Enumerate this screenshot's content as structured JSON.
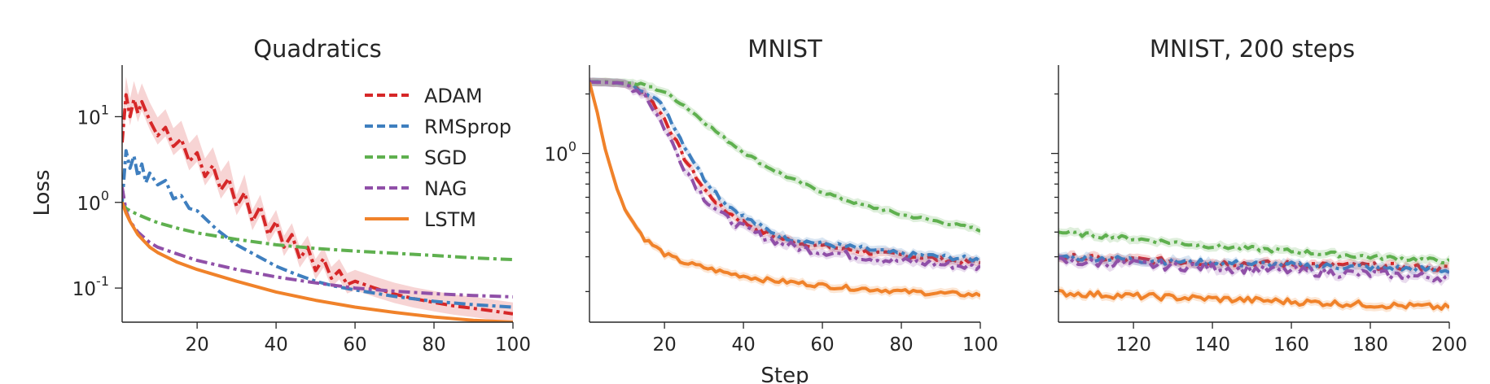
{
  "colors": {
    "ADAM": "#d62728",
    "RMSprop": "#3f7fbf",
    "SGD": "#5fb04f",
    "NAG": "#9050a8",
    "LSTM": "#f0822a"
  },
  "legend": {
    "placement": "top-right",
    "entries": [
      "ADAM",
      "RMSprop",
      "SGD",
      "NAG",
      "LSTM"
    ]
  },
  "shared_xlabel": "Step",
  "chart_data": [
    {
      "type": "line",
      "title": "Quadratics",
      "xlabel": "",
      "ylabel": "Loss",
      "yscale": "log",
      "xlim": [
        1,
        100
      ],
      "ylim": [
        0.04,
        40
      ],
      "xticks": [
        20,
        40,
        60,
        80,
        100
      ],
      "yticks": [
        0.1,
        1,
        10
      ],
      "ytick_labels": [
        [
          "10",
          "-1"
        ],
        [
          "10",
          "0"
        ],
        [
          "10",
          "1"
        ]
      ],
      "grid": false,
      "series": [
        {
          "name": "ADAM",
          "style": "dashdot",
          "band": true,
          "x": [
            1,
            2,
            3,
            4,
            5,
            6,
            8,
            10,
            12,
            14,
            16,
            18,
            20,
            22,
            24,
            26,
            28,
            30,
            32,
            34,
            36,
            38,
            40,
            42,
            44,
            46,
            48,
            50,
            52,
            54,
            56,
            58,
            60,
            65,
            70,
            75,
            80,
            85,
            90,
            95,
            100
          ],
          "y": [
            5,
            18,
            10,
            16,
            11,
            15,
            9,
            6,
            7.5,
            4.5,
            5.5,
            3,
            3.8,
            2,
            2.7,
            1.4,
            1.9,
            0.9,
            1.3,
            0.6,
            0.9,
            0.42,
            0.6,
            0.3,
            0.42,
            0.22,
            0.3,
            0.16,
            0.22,
            0.13,
            0.16,
            0.11,
            0.12,
            0.1,
            0.085,
            0.075,
            0.068,
            0.062,
            0.058,
            0.054,
            0.05
          ]
        },
        {
          "name": "RMSprop",
          "style": "dashdot",
          "band": false,
          "x": [
            1,
            2,
            3,
            4,
            5,
            6,
            7,
            8,
            10,
            12,
            14,
            16,
            18,
            20,
            25,
            30,
            35,
            40,
            45,
            50,
            55,
            60,
            70,
            80,
            90,
            100
          ],
          "y": [
            1,
            4,
            2.5,
            3.5,
            2,
            2.8,
            1.7,
            2.2,
            1.6,
            1.8,
            1.1,
            1.2,
            0.85,
            0.8,
            0.48,
            0.32,
            0.24,
            0.18,
            0.145,
            0.12,
            0.105,
            0.095,
            0.08,
            0.07,
            0.064,
            0.06
          ]
        },
        {
          "name": "SGD",
          "style": "dashdot",
          "band": false,
          "x": [
            1,
            2,
            3,
            5,
            8,
            10,
            15,
            20,
            30,
            40,
            50,
            60,
            70,
            80,
            90,
            100
          ],
          "y": [
            1,
            0.85,
            0.8,
            0.72,
            0.63,
            0.58,
            0.5,
            0.44,
            0.37,
            0.32,
            0.29,
            0.27,
            0.255,
            0.24,
            0.225,
            0.215
          ]
        },
        {
          "name": "NAG",
          "style": "dashdot",
          "band": false,
          "x": [
            1,
            2,
            3,
            5,
            8,
            10,
            15,
            20,
            30,
            40,
            50,
            60,
            70,
            80,
            90,
            100
          ],
          "y": [
            1.5,
            0.8,
            0.6,
            0.45,
            0.34,
            0.3,
            0.25,
            0.21,
            0.165,
            0.135,
            0.115,
            0.1,
            0.092,
            0.086,
            0.082,
            0.079
          ]
        },
        {
          "name": "LSTM",
          "style": "solid",
          "band": false,
          "x": [
            1,
            2,
            3,
            5,
            8,
            10,
            15,
            20,
            30,
            40,
            50,
            60,
            70,
            80,
            90,
            100
          ],
          "y": [
            1,
            0.75,
            0.6,
            0.42,
            0.3,
            0.26,
            0.2,
            0.165,
            0.12,
            0.09,
            0.072,
            0.06,
            0.052,
            0.046,
            0.042,
            0.038
          ]
        }
      ]
    },
    {
      "type": "line",
      "title": "MNIST",
      "xlabel": "Step",
      "ylabel": "",
      "yscale": "log",
      "xlim": [
        1,
        100
      ],
      "ylim": [
        0.14,
        2.8
      ],
      "xticks": [
        20,
        40,
        60,
        80,
        100
      ],
      "yticks": [
        1
      ],
      "ytick_labels": [
        [
          "10",
          "0"
        ]
      ],
      "minor_yticks": [
        0.2,
        0.3,
        0.4,
        0.5,
        0.6,
        0.7,
        0.8,
        0.9,
        2
      ],
      "grid": false,
      "series": [
        {
          "name": "ADAM",
          "style": "dashdot",
          "band": true,
          "noise": 0.02,
          "x": [
            1,
            5,
            10,
            15,
            20,
            25,
            30,
            35,
            40,
            45,
            50,
            55,
            60,
            65,
            70,
            75,
            80,
            85,
            90,
            95,
            100
          ],
          "y": [
            2.3,
            2.3,
            2.25,
            2.05,
            1.5,
            0.95,
            0.66,
            0.52,
            0.45,
            0.4,
            0.37,
            0.35,
            0.34,
            0.33,
            0.32,
            0.31,
            0.305,
            0.3,
            0.29,
            0.285,
            0.28
          ]
        },
        {
          "name": "RMSprop",
          "style": "dashdot",
          "band": true,
          "noise": 0.02,
          "x": [
            1,
            5,
            10,
            15,
            20,
            25,
            30,
            35,
            40,
            45,
            50,
            55,
            60,
            65,
            70,
            75,
            80,
            85,
            90,
            95,
            100
          ],
          "y": [
            2.3,
            2.3,
            2.25,
            2.1,
            1.7,
            1.1,
            0.75,
            0.57,
            0.48,
            0.42,
            0.38,
            0.36,
            0.35,
            0.34,
            0.33,
            0.32,
            0.31,
            0.305,
            0.3,
            0.295,
            0.29
          ]
        },
        {
          "name": "SGD",
          "style": "dashdot",
          "band": true,
          "noise": 0.012,
          "x": [
            1,
            5,
            10,
            15,
            20,
            25,
            30,
            35,
            40,
            45,
            50,
            55,
            60,
            65,
            70,
            75,
            80,
            85,
            90,
            95,
            100
          ],
          "y": [
            2.3,
            2.3,
            2.28,
            2.22,
            2.05,
            1.75,
            1.45,
            1.2,
            1.02,
            0.88,
            0.78,
            0.7,
            0.64,
            0.59,
            0.55,
            0.52,
            0.49,
            0.47,
            0.45,
            0.43,
            0.41
          ]
        },
        {
          "name": "NAG",
          "style": "dashdot",
          "band": true,
          "noise": 0.03,
          "x": [
            1,
            5,
            10,
            15,
            20,
            25,
            30,
            35,
            40,
            45,
            50,
            55,
            60,
            65,
            70,
            75,
            80,
            85,
            90,
            95,
            100
          ],
          "y": [
            2.3,
            2.3,
            2.25,
            2.0,
            1.35,
            0.85,
            0.6,
            0.48,
            0.42,
            0.38,
            0.35,
            0.33,
            0.32,
            0.31,
            0.3,
            0.29,
            0.285,
            0.28,
            0.275,
            0.27,
            0.265
          ]
        },
        {
          "name": "LSTM",
          "style": "solid",
          "band": true,
          "noise": 0.018,
          "x": [
            1,
            3,
            5,
            8,
            10,
            13,
            15,
            20,
            25,
            30,
            35,
            40,
            45,
            50,
            55,
            60,
            65,
            70,
            75,
            80,
            85,
            90,
            95,
            100
          ],
          "y": [
            2.3,
            1.6,
            1.05,
            0.66,
            0.52,
            0.42,
            0.37,
            0.31,
            0.28,
            0.265,
            0.25,
            0.24,
            0.23,
            0.225,
            0.22,
            0.215,
            0.21,
            0.207,
            0.204,
            0.2,
            0.198,
            0.196,
            0.194,
            0.192
          ]
        }
      ]
    },
    {
      "type": "line",
      "title": "MNIST, 200 steps",
      "xlabel": "",
      "ylabel": "",
      "yscale": "log",
      "xlim": [
        101,
        200
      ],
      "ylim": [
        0.14,
        2.8
      ],
      "xticks": [
        120,
        140,
        160,
        180,
        200
      ],
      "yticks": [
        1
      ],
      "ytick_labels": [],
      "minor_yticks": [
        0.2,
        0.3,
        0.4,
        0.5,
        0.6,
        0.7,
        0.8,
        0.9,
        2
      ],
      "grid": false,
      "series": [
        {
          "name": "ADAM",
          "style": "dashdot",
          "band": true,
          "noise": 0.025,
          "x": [
            101,
            120,
            140,
            160,
            180,
            200
          ],
          "y": [
            0.3,
            0.29,
            0.28,
            0.275,
            0.27,
            0.262
          ]
        },
        {
          "name": "RMSprop",
          "style": "dashdot",
          "band": true,
          "noise": 0.025,
          "x": [
            101,
            120,
            140,
            160,
            180,
            200
          ],
          "y": [
            0.3,
            0.29,
            0.28,
            0.272,
            0.265,
            0.256
          ]
        },
        {
          "name": "SGD",
          "style": "dashdot",
          "band": true,
          "noise": 0.018,
          "x": [
            101,
            120,
            140,
            160,
            180,
            200
          ],
          "y": [
            0.4,
            0.37,
            0.34,
            0.32,
            0.3,
            0.285
          ]
        },
        {
          "name": "NAG",
          "style": "dashdot",
          "band": true,
          "noise": 0.035,
          "x": [
            101,
            120,
            140,
            160,
            180,
            200
          ],
          "y": [
            0.285,
            0.275,
            0.265,
            0.255,
            0.245,
            0.235
          ]
        },
        {
          "name": "LSTM",
          "style": "solid",
          "band": true,
          "noise": 0.025,
          "x": [
            101,
            120,
            140,
            160,
            180,
            200
          ],
          "y": [
            0.197,
            0.19,
            0.184,
            0.178,
            0.172,
            0.166
          ]
        }
      ]
    }
  ]
}
